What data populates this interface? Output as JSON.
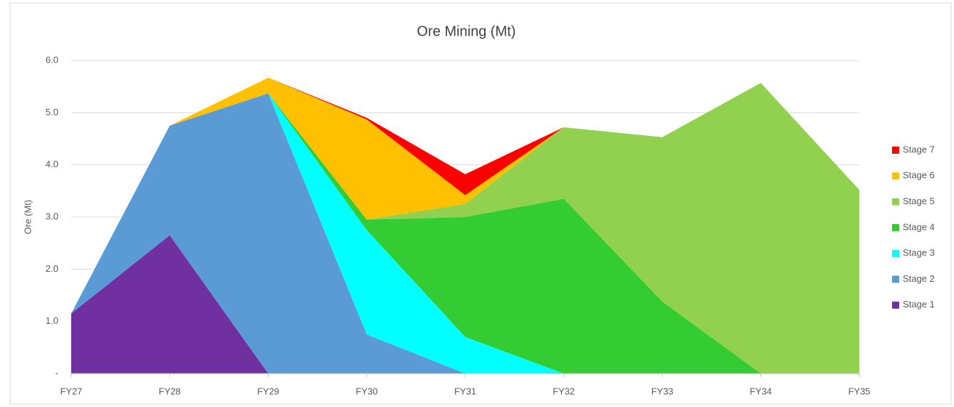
{
  "chart_data": {
    "type": "area",
    "stacked": true,
    "title": "Ore Mining (Mt)",
    "y_label": "Ore (Mt)",
    "categories": [
      "FY27",
      "FY28",
      "FY29",
      "FY30",
      "FY31",
      "FY32",
      "FY33",
      "FY34",
      "FY35"
    ],
    "series": [
      {
        "name": "Stage 1",
        "color": "#7030a0",
        "values": [
          1.15,
          2.65,
          0,
          0,
          0,
          0,
          0,
          0,
          0
        ]
      },
      {
        "name": "Stage 2",
        "color": "#5b9bd5",
        "values": [
          0,
          2.1,
          5.37,
          0.75,
          0,
          0,
          0,
          0,
          0
        ]
      },
      {
        "name": "Stage 3",
        "color": "#00ffff",
        "values": [
          0,
          0,
          0,
          2.0,
          0.7,
          0,
          0,
          0,
          0
        ]
      },
      {
        "name": "Stage 4",
        "color": "#33cc33",
        "values": [
          0,
          0,
          0,
          0.2,
          2.3,
          3.35,
          1.38,
          0,
          0
        ]
      },
      {
        "name": "Stage 5",
        "color": "#92d050",
        "values": [
          0,
          0,
          0,
          0,
          0.25,
          1.37,
          3.15,
          5.57,
          3.52
        ]
      },
      {
        "name": "Stage 6",
        "color": "#ffc000",
        "values": [
          0,
          0,
          0.3,
          1.92,
          0.17,
          0,
          0,
          0,
          0
        ]
      },
      {
        "name": "Stage 7",
        "color": "#ff0000",
        "values": [
          0,
          0,
          0,
          0.03,
          0.4,
          0,
          0,
          0,
          0
        ]
      }
    ],
    "ylim": [
      0,
      6
    ],
    "yticks": [
      {
        "value": 0,
        "label": "-"
      },
      {
        "value": 1,
        "label": "1.0"
      },
      {
        "value": 2,
        "label": "2.0"
      },
      {
        "value": 3,
        "label": "3.0"
      },
      {
        "value": 4,
        "label": "4.0"
      },
      {
        "value": 5,
        "label": "5.0"
      },
      {
        "value": 6,
        "label": "6.0"
      }
    ],
    "grid": true,
    "legend": "right"
  }
}
